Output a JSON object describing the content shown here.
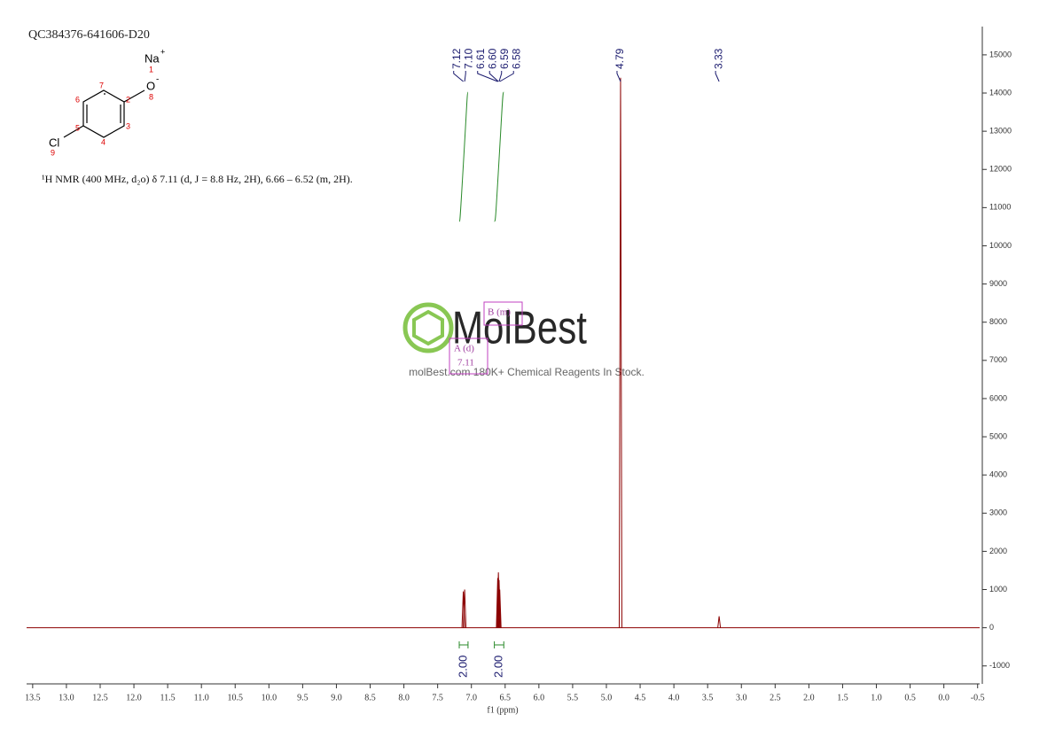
{
  "chart_data": {
    "type": "nmr",
    "title": "QC384376-641606-D20",
    "description": "¹H NMR (400 MHz, d₂o) δ 7.11 (d, J = 8.8 Hz, 2H), 6.66 – 6.52 (m, 2H).",
    "xlabel": "f1 (ppm)",
    "xlim": [
      13.59,
      -0.53
    ],
    "ylim": [
      -1470,
      15740
    ],
    "xticks": [
      13.5,
      {
        "value": 13,
        "label": "13.0"
      },
      12.5,
      {
        "value": 12,
        "label": "12.0"
      },
      11.5,
      {
        "value": 11,
        "label": "11.0"
      },
      10.5,
      {
        "value": 10,
        "label": "10.0"
      },
      9.5,
      {
        "value": 9,
        "label": "9.0"
      },
      8.5,
      {
        "value": 8,
        "label": "8.0"
      },
      7.5,
      {
        "value": 7,
        "label": "7.0"
      },
      6.5,
      {
        "value": 6,
        "label": "6.0"
      },
      5.5,
      {
        "value": 5,
        "label": "5.0"
      },
      4.5,
      {
        "value": 4,
        "label": "4.0"
      },
      3.5,
      {
        "value": 3,
        "label": "3.0"
      },
      2.5,
      {
        "value": 2,
        "label": "2.0"
      },
      1.5,
      {
        "value": 1,
        "label": "1.0"
      },
      0.5,
      {
        "value": 0,
        "label": "0.0"
      },
      -0.5
    ],
    "yticks": [
      -1000,
      0,
      1000,
      2000,
      3000,
      4000,
      5000,
      6000,
      7000,
      8000,
      9000,
      10000,
      11000,
      12000,
      13000,
      14000,
      15000
    ],
    "color": "#8b0000",
    "peaks": {
      "x": [
        7.12,
        7.1,
        6.61,
        6.6,
        6.59,
        6.58,
        4.79,
        3.33
      ],
      "values": [
        950,
        1000,
        1300,
        1450,
        1250,
        1000,
        14400,
        300
      ],
      "labels": [
        "7.12",
        "7.10",
        "6.61",
        "6.60",
        "6.59",
        "6.58",
        "4.79",
        "3.33"
      ]
    },
    "integrals": {
      "ranges": [
        [
          7.18,
          7.05
        ],
        [
          6.66,
          6.52
        ]
      ],
      "values": [
        2,
        2
      ],
      "value_labels": [
        "2.00",
        "2.00"
      ]
    },
    "multiplets": [
      {
        "label": "A (d)",
        "shift": "7.11"
      },
      {
        "label": "B (m)"
      }
    ]
  },
  "structure": {
    "sodium": "Na",
    "sodium_charge": "+",
    "oxygen": "O",
    "oxygen_charge": "-",
    "chlorine": "Cl",
    "atom_numbers": [
      "1",
      "2",
      "3",
      "4",
      "5",
      "6",
      "7",
      "8",
      "9"
    ]
  },
  "watermark": {
    "brand": "MolBest",
    "tagline": "molBest.com 180K+ Chemical Reagents In Stock."
  }
}
